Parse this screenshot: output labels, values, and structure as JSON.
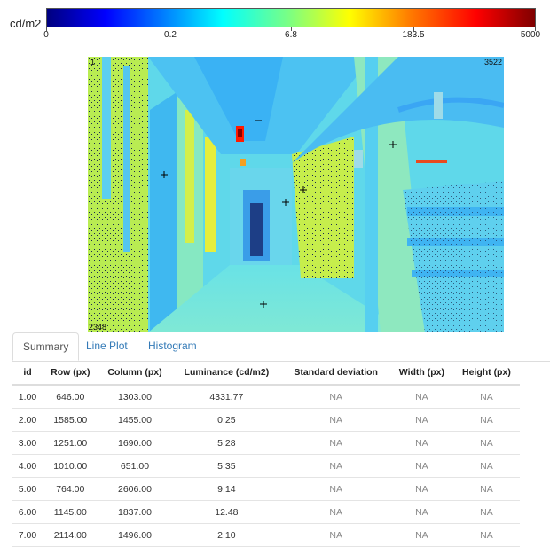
{
  "colorbar": {
    "unit": "cd/m2",
    "ticks": [
      "0",
      "0.2",
      "6.8",
      "183.5",
      "5000"
    ]
  },
  "image": {
    "corner_top_left": "1",
    "corner_top_right": "3522",
    "corner_bottom_left": "2348"
  },
  "tabs": [
    {
      "label": "Summary",
      "active": true
    },
    {
      "label": "Line Plot",
      "active": false
    },
    {
      "label": "Histogram",
      "active": false
    }
  ],
  "table": {
    "headers": [
      "id",
      "Row (px)",
      "Column (px)",
      "Luminance (cd/m2)",
      "Standard deviation",
      "Width (px)",
      "Height (px)"
    ],
    "rows": [
      [
        "1.00",
        "646.00",
        "1303.00",
        "4331.77",
        "NA",
        "NA",
        "NA"
      ],
      [
        "2.00",
        "1585.00",
        "1455.00",
        "0.25",
        "NA",
        "NA",
        "NA"
      ],
      [
        "3.00",
        "1251.00",
        "1690.00",
        "5.28",
        "NA",
        "NA",
        "NA"
      ],
      [
        "4.00",
        "1010.00",
        "651.00",
        "5.35",
        "NA",
        "NA",
        "NA"
      ],
      [
        "5.00",
        "764.00",
        "2606.00",
        "9.14",
        "NA",
        "NA",
        "NA"
      ],
      [
        "6.00",
        "1145.00",
        "1837.00",
        "12.48",
        "NA",
        "NA",
        "NA"
      ],
      [
        "7.00",
        "2114.00",
        "1496.00",
        "2.10",
        "NA",
        "NA",
        "NA"
      ]
    ]
  },
  "colors": {
    "tab_link": "#337ab7",
    "falsecolor_base": "#5fd8e8",
    "falsecolor_warm": "#c9ef4a"
  }
}
